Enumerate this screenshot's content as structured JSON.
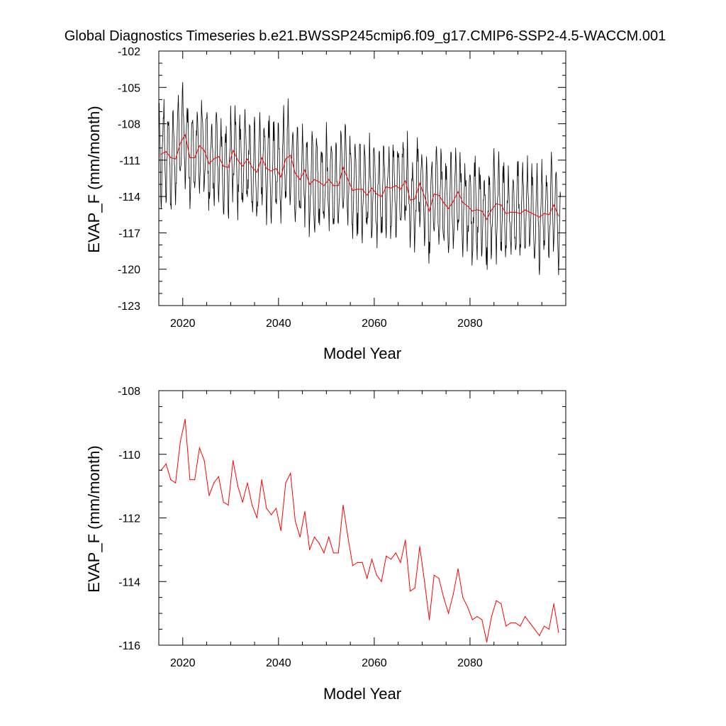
{
  "title": "Global Diagnostics Timeseries b.e21.BWSSP245cmip6.f09_g17.CMIP6-SSP2-4.5-WACCM.001",
  "colors": {
    "monthly": "#000000",
    "annual": "#ff0000",
    "axis": "#000000"
  },
  "chart_data": [
    {
      "type": "line",
      "xlabel": "Model Year",
      "ylabel": "EVAP_F (mm/month)",
      "xlim": [
        2015,
        2100
      ],
      "ylim": [
        -123,
        -102
      ],
      "x_ticks": [
        2020,
        2040,
        2060,
        2080
      ],
      "y_ticks": [
        -123,
        -120,
        -117,
        -114,
        -111,
        -108,
        -105,
        -102
      ],
      "series": [
        {
          "color": "#ff0000",
          "x_start": 2015.5,
          "step": 1,
          "values": [
            -110.5,
            -110.3,
            -110.8,
            -110.9,
            -109.6,
            -108.9,
            -110.8,
            -110.8,
            -109.8,
            -110.2,
            -111.3,
            -110.9,
            -110.7,
            -111.5,
            -111.6,
            -110.2,
            -111.0,
            -111.5,
            -110.9,
            -111.6,
            -112.0,
            -110.8,
            -111.7,
            -111.9,
            -111.7,
            -112.4,
            -110.9,
            -110.6,
            -112.1,
            -112.6,
            -111.8,
            -113.0,
            -112.6,
            -112.8,
            -113.1,
            -112.6,
            -113.1,
            -113.1,
            -111.6,
            -112.6,
            -113.5,
            -113.4,
            -113.4,
            -113.9,
            -113.3,
            -113.8,
            -114.0,
            -113.2,
            -113.3,
            -113.1,
            -113.4,
            -112.7,
            -114.3,
            -114.2,
            -112.9,
            -114.0,
            -115.2,
            -113.8,
            -113.9,
            -114.5,
            -115.0,
            -114.4,
            -113.6,
            -114.5,
            -114.8,
            -115.2,
            -115.1,
            -115.2,
            -115.9,
            -115.1,
            -114.6,
            -114.7,
            -115.4,
            -115.3,
            -115.3,
            -115.4,
            -115.1,
            -115.3,
            -115.5,
            -115.7,
            -115.4,
            -115.5,
            -114.7,
            -115.6
          ]
        }
      ]
    },
    {
      "type": "line",
      "xlabel": "Model Year",
      "ylabel": "EVAP_F (mm/month)",
      "xlim": [
        2015,
        2100
      ],
      "ylim": [
        -116,
        -108
      ],
      "x_ticks": [
        2020,
        2040,
        2060,
        2080
      ],
      "y_ticks": [
        -116,
        -114,
        -112,
        -110,
        -108
      ],
      "series": [
        {
          "color": "#ff0000",
          "x_start": 2015.5,
          "step": 1,
          "values": [
            -110.5,
            -110.3,
            -110.8,
            -110.9,
            -109.6,
            -108.9,
            -110.8,
            -110.8,
            -109.8,
            -110.2,
            -111.3,
            -110.9,
            -110.7,
            -111.5,
            -111.6,
            -110.2,
            -111.0,
            -111.5,
            -110.9,
            -111.6,
            -112.0,
            -110.8,
            -111.7,
            -111.9,
            -111.7,
            -112.4,
            -110.9,
            -110.6,
            -112.1,
            -112.6,
            -111.8,
            -113.0,
            -112.6,
            -112.8,
            -113.1,
            -112.6,
            -113.1,
            -113.1,
            -111.6,
            -112.6,
            -113.5,
            -113.4,
            -113.4,
            -113.9,
            -113.3,
            -113.8,
            -114.0,
            -113.2,
            -113.3,
            -113.1,
            -113.4,
            -112.7,
            -114.3,
            -114.2,
            -112.9,
            -114.0,
            -115.2,
            -113.8,
            -113.9,
            -114.5,
            -115.0,
            -114.4,
            -113.6,
            -114.5,
            -114.8,
            -115.2,
            -115.1,
            -115.2,
            -115.9,
            -115.1,
            -114.6,
            -114.7,
            -115.4,
            -115.3,
            -115.3,
            -115.4,
            -115.1,
            -115.3,
            -115.5,
            -115.7,
            -115.4,
            -115.5,
            -114.7,
            -115.6
          ]
        }
      ]
    }
  ]
}
